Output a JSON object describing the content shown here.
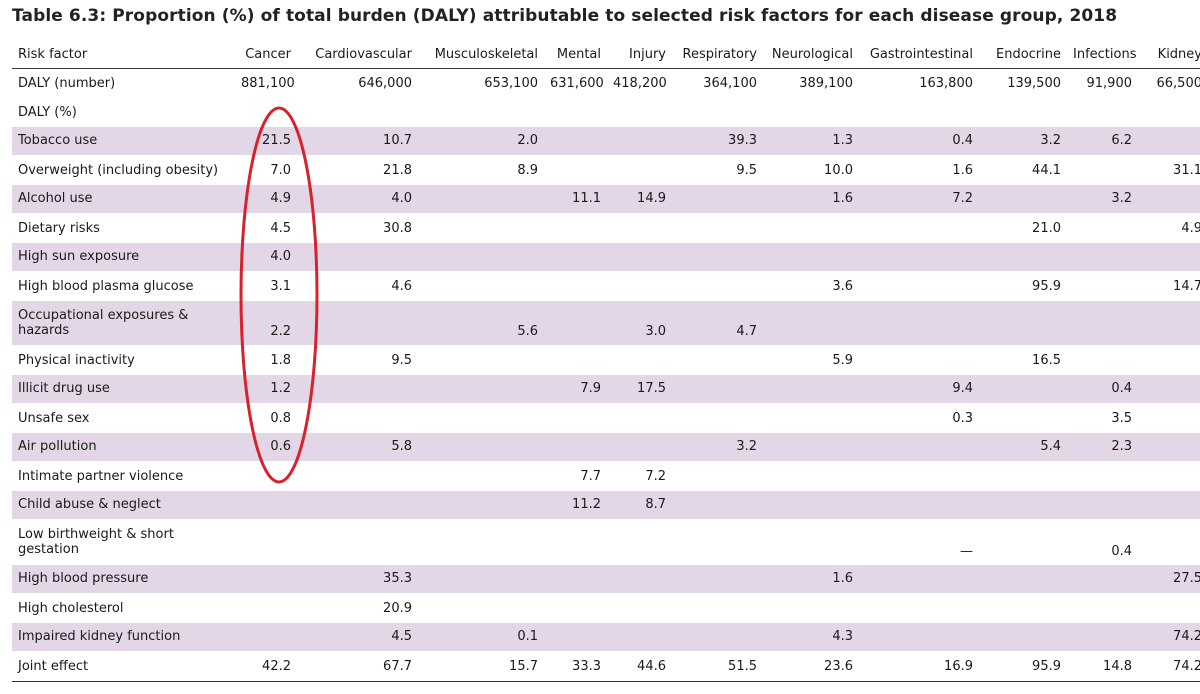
{
  "title": "Table 6.3: Proportion (%) of total burden (DALY) attributable to selected risk factors for each disease group, 2018",
  "columns": [
    "Risk factor",
    "Cancer",
    "Cardiovascular",
    "Musculoskeletal",
    "Mental",
    "Injury",
    "Respiratory",
    "Neurological",
    "Gastrointestinal",
    "Endocrine",
    "Infections",
    "Kidney"
  ],
  "daly_number": [
    "DALY (number)",
    "881,100",
    "646,000",
    "653,100",
    "631,600",
    "418,200",
    "364,100",
    "389,100",
    "163,800",
    "139,500",
    "91,900",
    "66,500"
  ],
  "daly_pct_label": "DALY (%)",
  "rows": [
    [
      "Tobacco use",
      "21.5",
      "10.7",
      "2.0",
      "",
      "",
      "39.3",
      "1.3",
      "0.4",
      "3.2",
      "6.2",
      ""
    ],
    [
      "Overweight (including obesity)",
      "7.0",
      "21.8",
      "8.9",
      "",
      "",
      "9.5",
      "10.0",
      "1.6",
      "44.1",
      "",
      "31.1"
    ],
    [
      "Alcohol use",
      "4.9",
      "4.0",
      "",
      "11.1",
      "14.9",
      "",
      "1.6",
      "7.2",
      "",
      "3.2",
      ""
    ],
    [
      "Dietary risks",
      "4.5",
      "30.8",
      "",
      "",
      "",
      "",
      "",
      "",
      "21.0",
      "",
      "4.9"
    ],
    [
      "High sun exposure",
      "4.0",
      "",
      "",
      "",
      "",
      "",
      "",
      "",
      "",
      "",
      ""
    ],
    [
      "High blood plasma glucose",
      "3.1",
      "4.6",
      "",
      "",
      "",
      "",
      "3.6",
      "",
      "95.9",
      "",
      "14.7"
    ],
    [
      "Occupational exposures & hazards",
      "2.2",
      "",
      "5.6",
      "",
      "3.0",
      "4.7",
      "",
      "",
      "",
      "",
      ""
    ],
    [
      "Physical inactivity",
      "1.8",
      "9.5",
      "",
      "",
      "",
      "",
      "5.9",
      "",
      "16.5",
      "",
      ""
    ],
    [
      "Illicit drug use",
      "1.2",
      "",
      "",
      "7.9",
      "17.5",
      "",
      "",
      "9.4",
      "",
      "0.4",
      ""
    ],
    [
      "Unsafe sex",
      "0.8",
      "",
      "",
      "",
      "",
      "",
      "",
      "0.3",
      "",
      "3.5",
      ""
    ],
    [
      "Air pollution",
      "0.6",
      "5.8",
      "",
      "",
      "",
      "3.2",
      "",
      "",
      "5.4",
      "2.3",
      ""
    ],
    [
      "Intimate partner violence",
      "",
      "",
      "",
      "7.7",
      "7.2",
      "",
      "",
      "",
      "",
      "",
      ""
    ],
    [
      "Child abuse & neglect",
      "",
      "",
      "",
      "11.2",
      "8.7",
      "",
      "",
      "",
      "",
      "",
      ""
    ],
    [
      "Low birthweight & short gestation",
      "",
      "",
      "",
      "",
      "",
      "",
      "",
      "—",
      "",
      "0.4",
      ""
    ],
    [
      "High blood pressure",
      "",
      "35.3",
      "",
      "",
      "",
      "",
      "1.6",
      "",
      "",
      "",
      "27.5"
    ],
    [
      "High cholesterol",
      "",
      "20.9",
      "",
      "",
      "",
      "",
      "",
      "",
      "",
      "",
      ""
    ],
    [
      "Impaired kidney function",
      "",
      "4.5",
      "0.1",
      "",
      "",
      "",
      "4.3",
      "",
      "",
      "",
      "74.2"
    ]
  ],
  "joint_effect": [
    "Joint effect",
    "42.2",
    "67.7",
    "15.7",
    "33.3",
    "44.6",
    "51.5",
    "23.6",
    "16.9",
    "95.9",
    "14.8",
    "74.2"
  ],
  "colors": {
    "row_shade": "#e3d6e6",
    "annotation_circle": "#d7222b",
    "rule": "#333333"
  }
}
